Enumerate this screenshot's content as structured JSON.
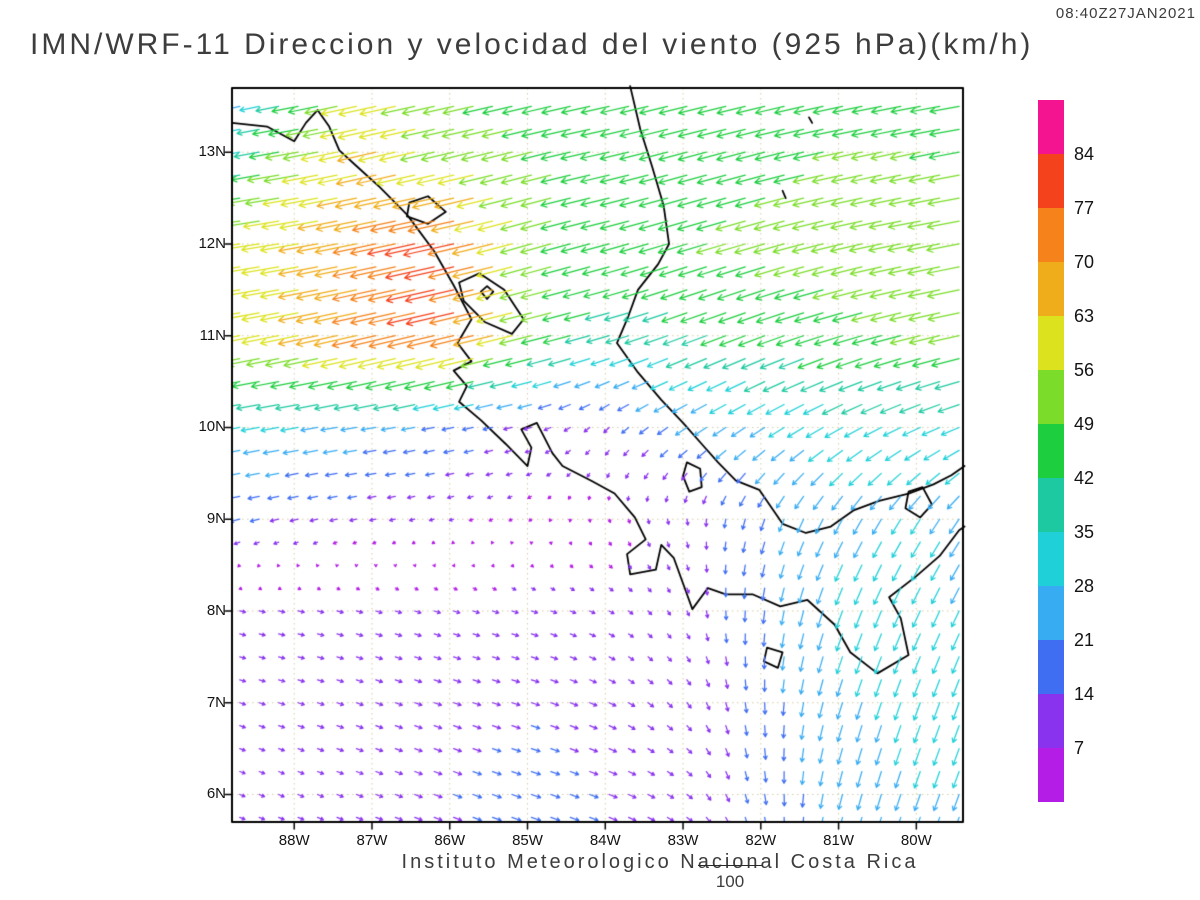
{
  "header": {
    "title": "IMN/WRF-11 Direccion y velocidad del viento (925 hPa)(km/h)",
    "timestamp": "08:40Z27JAN2021"
  },
  "footer": {
    "credit": "Instituto Meteorologico Nacional Costa Rica",
    "ref_label": "100"
  },
  "chart_data": {
    "type": "vector_field",
    "title": "IMN/WRF-11 Direccion y velocidad del viento (925 hPa)(km/h)",
    "timestamp": "08:40Z27JAN2021",
    "units": "km/h",
    "level": "925 hPa",
    "axes": {
      "lat_range": [
        5.7,
        13.7
      ],
      "lon_range": [
        -88.8,
        -79.4
      ],
      "grid": "dotted",
      "grid_color": "#d4cda6",
      "lat_ticks": [
        {
          "label": "13N",
          "value": 13
        },
        {
          "label": "12N",
          "value": 12
        },
        {
          "label": "11N",
          "value": 11
        },
        {
          "label": "10N",
          "value": 10
        },
        {
          "label": "9N",
          "value": 9
        },
        {
          "label": "8N",
          "value": 8
        },
        {
          "label": "7N",
          "value": 7
        },
        {
          "label": "6N",
          "value": 6
        }
      ],
      "lon_ticks": [
        {
          "label": "88W",
          "value": -88
        },
        {
          "label": "87W",
          "value": -87
        },
        {
          "label": "86W",
          "value": -86
        },
        {
          "label": "85W",
          "value": -85
        },
        {
          "label": "84W",
          "value": -84
        },
        {
          "label": "83W",
          "value": -83
        },
        {
          "label": "82W",
          "value": -82
        },
        {
          "label": "81W",
          "value": -81
        },
        {
          "label": "80W",
          "value": -80
        }
      ]
    },
    "legend": {
      "position": "right",
      "ref_value": 100,
      "thresholds": [
        7,
        14,
        21,
        28,
        35,
        42,
        49,
        56,
        63,
        70,
        77,
        84
      ],
      "colors": [
        "#b41de6",
        "#8a33ee",
        "#3f6ef2",
        "#38acf2",
        "#1fd0d8",
        "#1cc9a0",
        "#1dce3e",
        "#7bdd2a",
        "#dce31e",
        "#f0ad1b",
        "#f5821a",
        "#f4431c",
        "#f5148f"
      ]
    },
    "wind_grid": {
      "lons": [
        -89,
        -88,
        -87,
        -86,
        -85,
        -84,
        -83,
        -82,
        -81,
        -80,
        -79
      ],
      "lats": [
        5,
        6,
        7,
        8,
        9,
        10,
        11,
        12,
        13,
        14
      ],
      "uv": [
        [
          [
            8,
            -3
          ],
          [
            9,
            -3
          ],
          [
            10,
            -4
          ],
          [
            12,
            -4
          ],
          [
            14,
            -5
          ],
          [
            12,
            -5
          ],
          [
            9,
            -6
          ],
          [
            4,
            -15
          ],
          [
            -5,
            -22
          ],
          [
            -8,
            -25
          ],
          [
            -10,
            -25
          ]
        ],
        [
          [
            8,
            -3
          ],
          [
            9,
            -4
          ],
          [
            11,
            -4
          ],
          [
            13,
            -5
          ],
          [
            15,
            -5
          ],
          [
            13,
            -5
          ],
          [
            9,
            -6
          ],
          [
            3,
            -16
          ],
          [
            -6,
            -24
          ],
          [
            -9,
            -26
          ],
          [
            -10,
            -26
          ]
        ],
        [
          [
            9,
            -3
          ],
          [
            10,
            -3
          ],
          [
            11,
            -4
          ],
          [
            12,
            -4
          ],
          [
            13,
            -4
          ],
          [
            11,
            -5
          ],
          [
            7,
            -8
          ],
          [
            1,
            -18
          ],
          [
            -8,
            -26
          ],
          [
            -10,
            -28
          ],
          [
            -10,
            -27
          ]
        ],
        [
          [
            9,
            -2
          ],
          [
            10,
            -2
          ],
          [
            10,
            -3
          ],
          [
            10,
            -3
          ],
          [
            10,
            -3
          ],
          [
            8,
            -4
          ],
          [
            4,
            -7
          ],
          [
            -2,
            -20
          ],
          [
            -10,
            -28
          ],
          [
            -12,
            -26
          ],
          [
            -12,
            -25
          ]
        ],
        [
          [
            -16,
            -4
          ],
          [
            -13,
            -3
          ],
          [
            -10,
            -2
          ],
          [
            -7,
            -2
          ],
          [
            -4,
            -3
          ],
          [
            2,
            -5
          ],
          [
            2,
            -9
          ],
          [
            -6,
            -18
          ],
          [
            -13,
            -24
          ],
          [
            -15,
            -24
          ],
          [
            -16,
            -22
          ]
        ],
        [
          [
            -30,
            -5
          ],
          [
            -28,
            -5
          ],
          [
            -24,
            -4
          ],
          [
            -19,
            -4
          ],
          [
            -12,
            -3
          ],
          [
            -8,
            -8
          ],
          [
            -18,
            -12
          ],
          [
            -23,
            -15
          ],
          [
            -28,
            -16
          ],
          [
            -28,
            -13
          ],
          [
            -29,
            -11
          ]
        ],
        [
          [
            -55,
            -10
          ],
          [
            -60,
            -12
          ],
          [
            -70,
            -16
          ],
          [
            -76,
            -18
          ],
          [
            -52,
            -13
          ],
          [
            -36,
            -10
          ],
          [
            -38,
            -14
          ],
          [
            -42,
            -16
          ],
          [
            -45,
            -14
          ],
          [
            -48,
            -12
          ],
          [
            -50,
            -10
          ]
        ],
        [
          [
            -58,
            -8
          ],
          [
            -60,
            -10
          ],
          [
            -68,
            -14
          ],
          [
            -82,
            -18
          ],
          [
            -50,
            -14
          ],
          [
            -45,
            -12
          ],
          [
            -46,
            -14
          ],
          [
            -48,
            -14
          ],
          [
            -50,
            -12
          ],
          [
            -52,
            -10
          ],
          [
            -52,
            -10
          ]
        ],
        [
          [
            -26,
            -5
          ],
          [
            -52,
            -9
          ],
          [
            -62,
            -14
          ],
          [
            -52,
            -12
          ],
          [
            -48,
            -12
          ],
          [
            -46,
            -10
          ],
          [
            -45,
            -12
          ],
          [
            -46,
            -12
          ],
          [
            -48,
            -10
          ],
          [
            -48,
            -10
          ],
          [
            -48,
            -8
          ]
        ],
        [
          [
            -12,
            -4
          ],
          [
            -30,
            -7
          ],
          [
            -58,
            -12
          ],
          [
            -46,
            -10
          ],
          [
            -45,
            -10
          ],
          [
            -44,
            -10
          ],
          [
            -44,
            -10
          ],
          [
            -45,
            -10
          ],
          [
            -46,
            -10
          ],
          [
            -46,
            -8
          ],
          [
            -45,
            -8
          ]
        ]
      ]
    },
    "coastlines": [
      {
        "name": "pacific-coast",
        "closed": false,
        "points": [
          [
            -88.8,
            13.32
          ],
          [
            -88.35,
            13.28
          ],
          [
            -88.0,
            13.12
          ],
          [
            -87.85,
            13.32
          ],
          [
            -87.7,
            13.46
          ],
          [
            -87.55,
            13.28
          ],
          [
            -87.42,
            13.02
          ],
          [
            -87.2,
            12.85
          ],
          [
            -86.9,
            12.62
          ],
          [
            -86.55,
            12.32
          ],
          [
            -86.2,
            11.92
          ],
          [
            -85.95,
            11.55
          ],
          [
            -85.72,
            11.18
          ],
          [
            -85.9,
            10.92
          ],
          [
            -85.72,
            10.72
          ],
          [
            -85.95,
            10.62
          ],
          [
            -85.78,
            10.45
          ],
          [
            -85.88,
            10.28
          ],
          [
            -85.6,
            10.08
          ],
          [
            -85.28,
            9.82
          ],
          [
            -85.0,
            9.58
          ],
          [
            -84.95,
            9.78
          ],
          [
            -85.08,
            9.98
          ],
          [
            -84.88,
            10.05
          ],
          [
            -84.68,
            9.72
          ],
          [
            -84.55,
            9.58
          ],
          [
            -84.18,
            9.42
          ],
          [
            -83.88,
            9.28
          ],
          [
            -83.62,
            9.02
          ],
          [
            -83.48,
            8.78
          ],
          [
            -83.72,
            8.62
          ],
          [
            -83.68,
            8.4
          ],
          [
            -83.35,
            8.45
          ],
          [
            -83.28,
            8.72
          ],
          [
            -83.12,
            8.58
          ],
          [
            -83.0,
            8.3
          ],
          [
            -82.88,
            8.02
          ],
          [
            -82.68,
            8.25
          ],
          [
            -82.45,
            8.18
          ],
          [
            -82.1,
            8.18
          ],
          [
            -81.75,
            8.05
          ],
          [
            -81.4,
            8.12
          ],
          [
            -81.05,
            7.85
          ],
          [
            -80.85,
            7.55
          ],
          [
            -80.5,
            7.32
          ],
          [
            -80.1,
            7.52
          ],
          [
            -80.2,
            7.92
          ],
          [
            -80.35,
            8.15
          ],
          [
            -80.0,
            8.38
          ],
          [
            -79.7,
            8.6
          ],
          [
            -79.45,
            8.88
          ],
          [
            -79.38,
            8.92
          ]
        ]
      },
      {
        "name": "caribbean-coast",
        "closed": false,
        "points": [
          [
            -83.68,
            13.72
          ],
          [
            -83.55,
            13.25
          ],
          [
            -83.4,
            12.85
          ],
          [
            -83.25,
            12.42
          ],
          [
            -83.18,
            12.0
          ],
          [
            -83.32,
            11.78
          ],
          [
            -83.58,
            11.5
          ],
          [
            -83.7,
            11.22
          ],
          [
            -83.85,
            10.92
          ],
          [
            -83.58,
            10.6
          ],
          [
            -83.28,
            10.3
          ],
          [
            -83.0,
            10.05
          ],
          [
            -82.76,
            9.82
          ],
          [
            -82.55,
            9.62
          ],
          [
            -82.32,
            9.42
          ],
          [
            -82.02,
            9.32
          ],
          [
            -81.72,
            8.95
          ],
          [
            -81.42,
            8.85
          ],
          [
            -81.1,
            8.92
          ],
          [
            -80.8,
            9.1
          ],
          [
            -80.48,
            9.2
          ],
          [
            -80.1,
            9.28
          ],
          [
            -79.78,
            9.38
          ],
          [
            -79.55,
            9.48
          ],
          [
            -79.38,
            9.58
          ]
        ]
      },
      {
        "name": "lake-nicaragua",
        "closed": true,
        "points": [
          [
            -85.88,
            11.58
          ],
          [
            -85.62,
            11.68
          ],
          [
            -85.3,
            11.5
          ],
          [
            -85.05,
            11.18
          ],
          [
            -85.2,
            11.02
          ],
          [
            -85.55,
            11.15
          ],
          [
            -85.82,
            11.38
          ]
        ]
      },
      {
        "name": "ometepe-island",
        "closed": true,
        "points": [
          [
            -85.6,
            11.48
          ],
          [
            -85.52,
            11.54
          ],
          [
            -85.44,
            11.48
          ],
          [
            -85.52,
            11.4
          ]
        ]
      },
      {
        "name": "lake-managua",
        "closed": true,
        "points": [
          [
            -86.52,
            12.45
          ],
          [
            -86.28,
            12.52
          ],
          [
            -86.05,
            12.35
          ],
          [
            -86.28,
            12.22
          ],
          [
            -86.55,
            12.3
          ]
        ]
      },
      {
        "name": "gatun-lake",
        "closed": true,
        "points": [
          [
            -80.1,
            9.3
          ],
          [
            -79.92,
            9.35
          ],
          [
            -79.8,
            9.16
          ],
          [
            -79.95,
            9.02
          ],
          [
            -80.14,
            9.12
          ]
        ]
      },
      {
        "name": "chiriqui-lagoon",
        "closed": true,
        "points": [
          [
            -82.95,
            9.62
          ],
          [
            -82.78,
            9.55
          ],
          [
            -82.76,
            9.35
          ],
          [
            -82.92,
            9.3
          ],
          [
            -83.0,
            9.47
          ]
        ]
      },
      {
        "name": "coiba-island",
        "closed": true,
        "points": [
          [
            -81.92,
            7.6
          ],
          [
            -81.72,
            7.55
          ],
          [
            -81.78,
            7.38
          ],
          [
            -81.96,
            7.45
          ]
        ]
      },
      {
        "name": "san-andres-island",
        "closed": false,
        "points": [
          [
            -81.72,
            12.58
          ],
          [
            -81.68,
            12.5
          ]
        ]
      },
      {
        "name": "providencia-island",
        "closed": false,
        "points": [
          [
            -81.38,
            13.38
          ],
          [
            -81.34,
            13.32
          ]
        ]
      }
    ]
  }
}
